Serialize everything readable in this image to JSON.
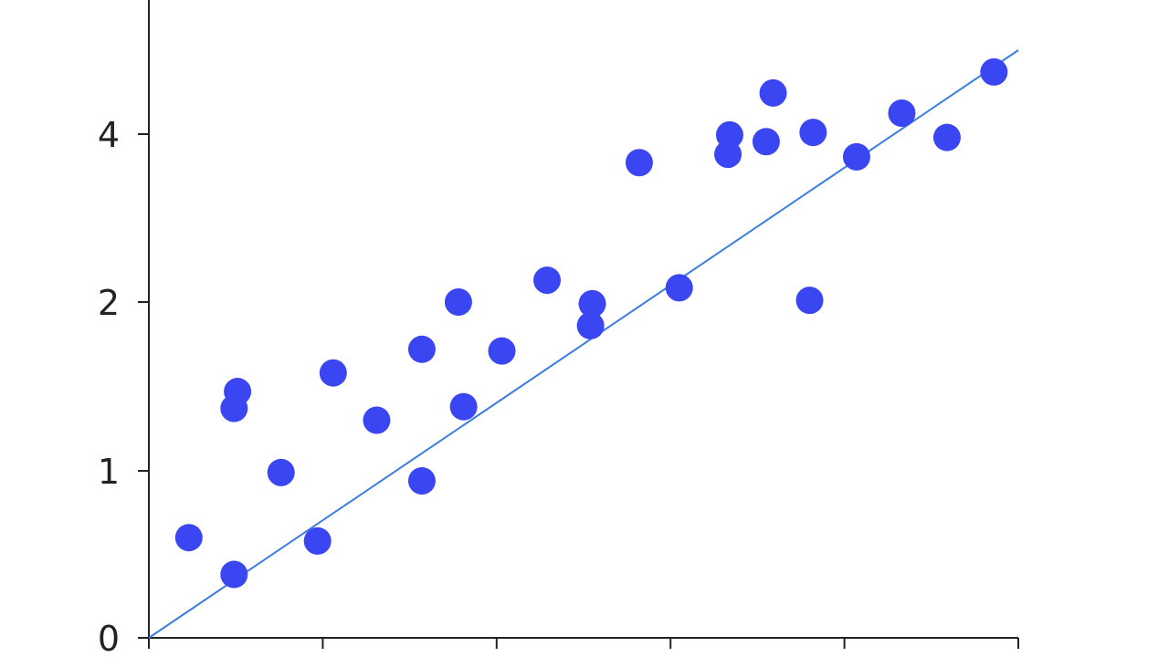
{
  "chart_data": {
    "type": "scatter",
    "title": "",
    "xlabel": "",
    "ylabel": "",
    "colors": {
      "points": "#3a46f2",
      "trend": "#3b7de0",
      "axis": "#222222"
    },
    "grid": false,
    "legend": "none",
    "xlim": [
      0,
      5
    ],
    "ylim": [
      0,
      5.5
    ],
    "y_scale": "linear-with-compressed-low-range",
    "y_ticks": [
      0,
      1,
      2,
      4
    ],
    "y_tick_labels": [
      "0",
      "1",
      "2",
      "4"
    ],
    "x_tick_count": 6,
    "trend_line": {
      "x1": 0,
      "y1": 0,
      "x2": 5,
      "y2": 5.0
    },
    "points": [
      {
        "x": 0.23,
        "y": 0.6
      },
      {
        "x": 0.49,
        "y": 0.38
      },
      {
        "x": 0.49,
        "y": 1.37
      },
      {
        "x": 0.51,
        "y": 1.47
      },
      {
        "x": 0.76,
        "y": 0.99
      },
      {
        "x": 0.97,
        "y": 0.58
      },
      {
        "x": 1.06,
        "y": 1.58
      },
      {
        "x": 1.31,
        "y": 1.3
      },
      {
        "x": 1.57,
        "y": 0.94
      },
      {
        "x": 1.57,
        "y": 1.72
      },
      {
        "x": 1.78,
        "y": 2.0
      },
      {
        "x": 1.81,
        "y": 1.38
      },
      {
        "x": 2.03,
        "y": 1.71
      },
      {
        "x": 2.29,
        "y": 2.26
      },
      {
        "x": 2.54,
        "y": 1.86
      },
      {
        "x": 2.55,
        "y": 1.99
      },
      {
        "x": 2.82,
        "y": 3.66
      },
      {
        "x": 3.05,
        "y": 2.17
      },
      {
        "x": 3.33,
        "y": 3.76
      },
      {
        "x": 3.34,
        "y": 3.99
      },
      {
        "x": 3.55,
        "y": 3.91
      },
      {
        "x": 3.59,
        "y": 4.49
      },
      {
        "x": 3.8,
        "y": 2.02
      },
      {
        "x": 3.82,
        "y": 4.02
      },
      {
        "x": 4.07,
        "y": 3.73
      },
      {
        "x": 4.33,
        "y": 4.25
      },
      {
        "x": 4.59,
        "y": 3.96
      },
      {
        "x": 4.86,
        "y": 4.74
      }
    ]
  }
}
